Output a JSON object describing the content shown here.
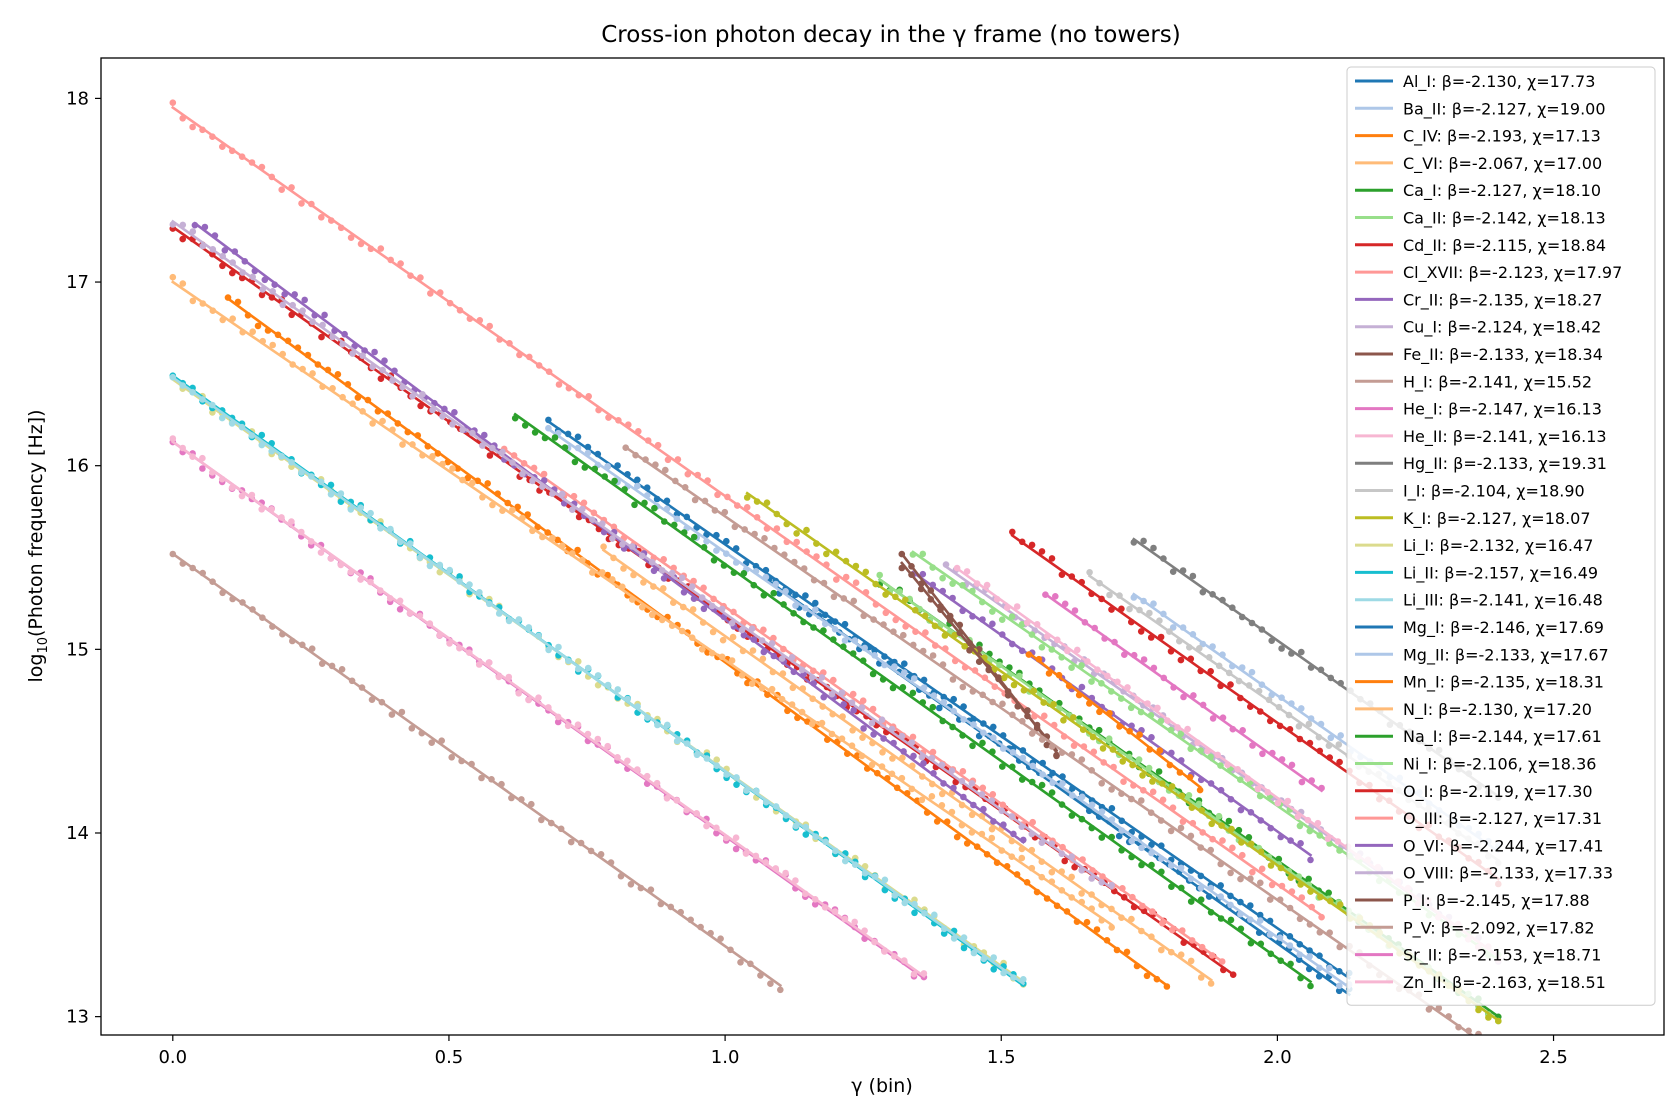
{
  "chart_data": {
    "type": "scatter",
    "title": "Cross-ion photon decay in the γ frame (no towers)",
    "xlabel": "γ (bin)",
    "ylabel": "log10(Photon frequency [Hz])",
    "ylabel_base": "log",
    "ylabel_sub": "10",
    "ylabel_rest": "(Photon frequency [Hz])",
    "xlim": [
      -0.13,
      2.7
    ],
    "ylim": [
      12.9,
      18.22
    ],
    "xticks": [
      0.0,
      0.5,
      1.0,
      1.5,
      2.0,
      2.5
    ],
    "xtick_labels": [
      "0.0",
      "0.5",
      "1.0",
      "1.5",
      "2.0",
      "2.5"
    ],
    "yticks": [
      13,
      14,
      15,
      16,
      17,
      18
    ],
    "ytick_labels": [
      "13",
      "14",
      "15",
      "16",
      "17",
      "18"
    ],
    "grid": false,
    "legend_position": "upper right",
    "series": [
      {
        "name": "Al_I: β=-2.130, χ=17.73",
        "color": "#1f77b4",
        "x0": 0.68,
        "x1": 2.13,
        "y0": 16.24,
        "y1": 13.21
      },
      {
        "name": "Ba_II: β=-2.127, χ=19.00",
        "color": "#aec7e8",
        "x0": 1.74,
        "x1": 2.4,
        "y0": 15.3,
        "y1": 13.9
      },
      {
        "name": "C_IV: β=-2.193, χ=17.13",
        "color": "#ff7f0e",
        "x0": 0.1,
        "x1": 1.8,
        "y0": 16.91,
        "y1": 13.17
      },
      {
        "name": "C_VI: β=-2.067, χ=17.00",
        "color": "#ffbb78",
        "x0": 0.0,
        "x1": 1.7,
        "y0": 17.0,
        "y1": 13.5
      },
      {
        "name": "Ca_I: β=-2.127, χ=18.10",
        "color": "#2ca02c",
        "x0": 1.28,
        "x1": 2.4,
        "y0": 15.38,
        "y1": 13.0
      },
      {
        "name": "Ca_II: β=-2.142, χ=18.13",
        "color": "#98df8a",
        "x0": 1.28,
        "x1": 2.4,
        "y0": 15.38,
        "y1": 12.98
      },
      {
        "name": "Cd_II: β=-2.115, χ=18.84",
        "color": "#d62728",
        "x0": 1.52,
        "x1": 2.4,
        "y0": 15.62,
        "y1": 13.75
      },
      {
        "name": "Cl_XVII: β=-2.123, χ=17.97",
        "color": "#ff9896",
        "x0": 0.0,
        "x1": 2.08,
        "y0": 17.95,
        "y1": 13.55
      },
      {
        "name": "Cr_II: β=-2.135, χ=18.27",
        "color": "#9467bd",
        "x0": 1.34,
        "x1": 2.06,
        "y0": 15.42,
        "y1": 13.88
      },
      {
        "name": "Cu_I: β=-2.124, χ=18.42",
        "color": "#c5b0d5",
        "x0": 1.4,
        "x1": 2.4,
        "y0": 15.45,
        "y1": 13.33
      },
      {
        "name": "Fe_II: β=-2.133, χ=18.34",
        "color": "#8c564b",
        "x0": 1.32,
        "x1": 1.6,
        "y0": 15.52,
        "y1": 14.44
      },
      {
        "name": "H_I: β=-2.141, χ=15.52",
        "color": "#c49c94",
        "x0": 0.0,
        "x1": 1.1,
        "y0": 15.52,
        "y1": 13.17
      },
      {
        "name": "He_I: β=-2.147, χ=16.13",
        "color": "#e377c2",
        "x0": 0.0,
        "x1": 1.36,
        "y0": 16.13,
        "y1": 13.21
      },
      {
        "name": "He_II: β=-2.141, χ=16.13",
        "color": "#f7b6d2",
        "x0": 0.0,
        "x1": 1.36,
        "y0": 16.13,
        "y1": 13.22
      },
      {
        "name": "Hg_II: β=-2.133, χ=19.31",
        "color": "#7f7f7f",
        "x0": 1.74,
        "x1": 2.4,
        "y0": 15.6,
        "y1": 14.2
      },
      {
        "name": "I_I: β=-2.104, χ=18.90",
        "color": "#c7c7c7",
        "x0": 1.66,
        "x1": 2.4,
        "y0": 15.4,
        "y1": 13.85
      },
      {
        "name": "K_I: β=-2.127, χ=18.07",
        "color": "#bcbd22",
        "x0": 1.04,
        "x1": 2.4,
        "y0": 15.85,
        "y1": 12.98
      },
      {
        "name": "Li_I: β=-2.132, χ=16.47",
        "color": "#dbdb8d",
        "x0": 0.0,
        "x1": 1.54,
        "y0": 16.47,
        "y1": 13.19
      },
      {
        "name": "Li_II: β=-2.157, χ=16.49",
        "color": "#17becf",
        "x0": 0.0,
        "x1": 1.54,
        "y0": 16.49,
        "y1": 13.17
      },
      {
        "name": "Li_III: β=-2.141, χ=16.48",
        "color": "#9edae5",
        "x0": 0.0,
        "x1": 1.54,
        "y0": 16.48,
        "y1": 13.18
      },
      {
        "name": "Mg_I: β=-2.146, χ=17.69",
        "color": "#1f77b4",
        "x0": 1.08,
        "x1": 2.13,
        "y0": 15.37,
        "y1": 13.12
      },
      {
        "name": "Mg_II: β=-2.133, χ=17.67",
        "color": "#aec7e8",
        "x0": 0.68,
        "x1": 2.13,
        "y0": 16.2,
        "y1": 13.16
      },
      {
        "name": "Mn_I: β=-2.135, χ=18.31",
        "color": "#ff7f0e",
        "x0": 1.55,
        "x1": 1.86,
        "y0": 14.98,
        "y1": 14.25
      },
      {
        "name": "N_I: β=-2.130, χ=17.20",
        "color": "#ffbb78",
        "x0": 0.78,
        "x1": 1.88,
        "y0": 15.54,
        "y1": 13.2
      },
      {
        "name": "Na_I: β=-2.144, χ=17.61",
        "color": "#2ca02c",
        "x0": 0.62,
        "x1": 2.06,
        "y0": 16.28,
        "y1": 13.19
      },
      {
        "name": "Ni_I: β=-2.106, χ=18.36",
        "color": "#98df8a",
        "x0": 1.34,
        "x1": 2.4,
        "y0": 15.53,
        "y1": 13.31
      },
      {
        "name": "O_I: β=-2.119, χ=17.30",
        "color": "#d62728",
        "x0": 0.0,
        "x1": 1.92,
        "y0": 17.3,
        "y1": 13.23
      },
      {
        "name": "O_III: β=-2.127, χ=17.31",
        "color": "#ff9896",
        "x0": 0.6,
        "x1": 1.9,
        "y0": 16.09,
        "y1": 13.3
      },
      {
        "name": "O_VI: β=-2.244, χ=17.41",
        "color": "#9467bd",
        "x0": 0.04,
        "x1": 1.54,
        "y0": 17.32,
        "y1": 13.95
      },
      {
        "name": "O_VIII: β=-2.133, χ=17.33",
        "color": "#c5b0d5",
        "x0": 0.0,
        "x1": 1.7,
        "y0": 17.33,
        "y1": 13.7
      },
      {
        "name": "P_I: β=-2.145, χ=17.88",
        "color": "#8c564b",
        "x0": 1.32,
        "x1": 1.6,
        "y0": 15.47,
        "y1": 14.45
      },
      {
        "name": "P_V: β=-2.092, χ=17.82",
        "color": "#c49c94",
        "x0": 0.82,
        "x1": 2.4,
        "y0": 16.1,
        "y1": 12.8
      },
      {
        "name": "Sr_II: β=-2.153, χ=18.71",
        "color": "#e377c2",
        "x0": 1.58,
        "x1": 2.08,
        "y0": 15.3,
        "y1": 14.23
      },
      {
        "name": "Zn_II: β=-2.163, χ=18.51",
        "color": "#f7b6d2",
        "x0": 1.42,
        "x1": 2.4,
        "y0": 15.44,
        "y1": 13.33
      }
    ]
  }
}
